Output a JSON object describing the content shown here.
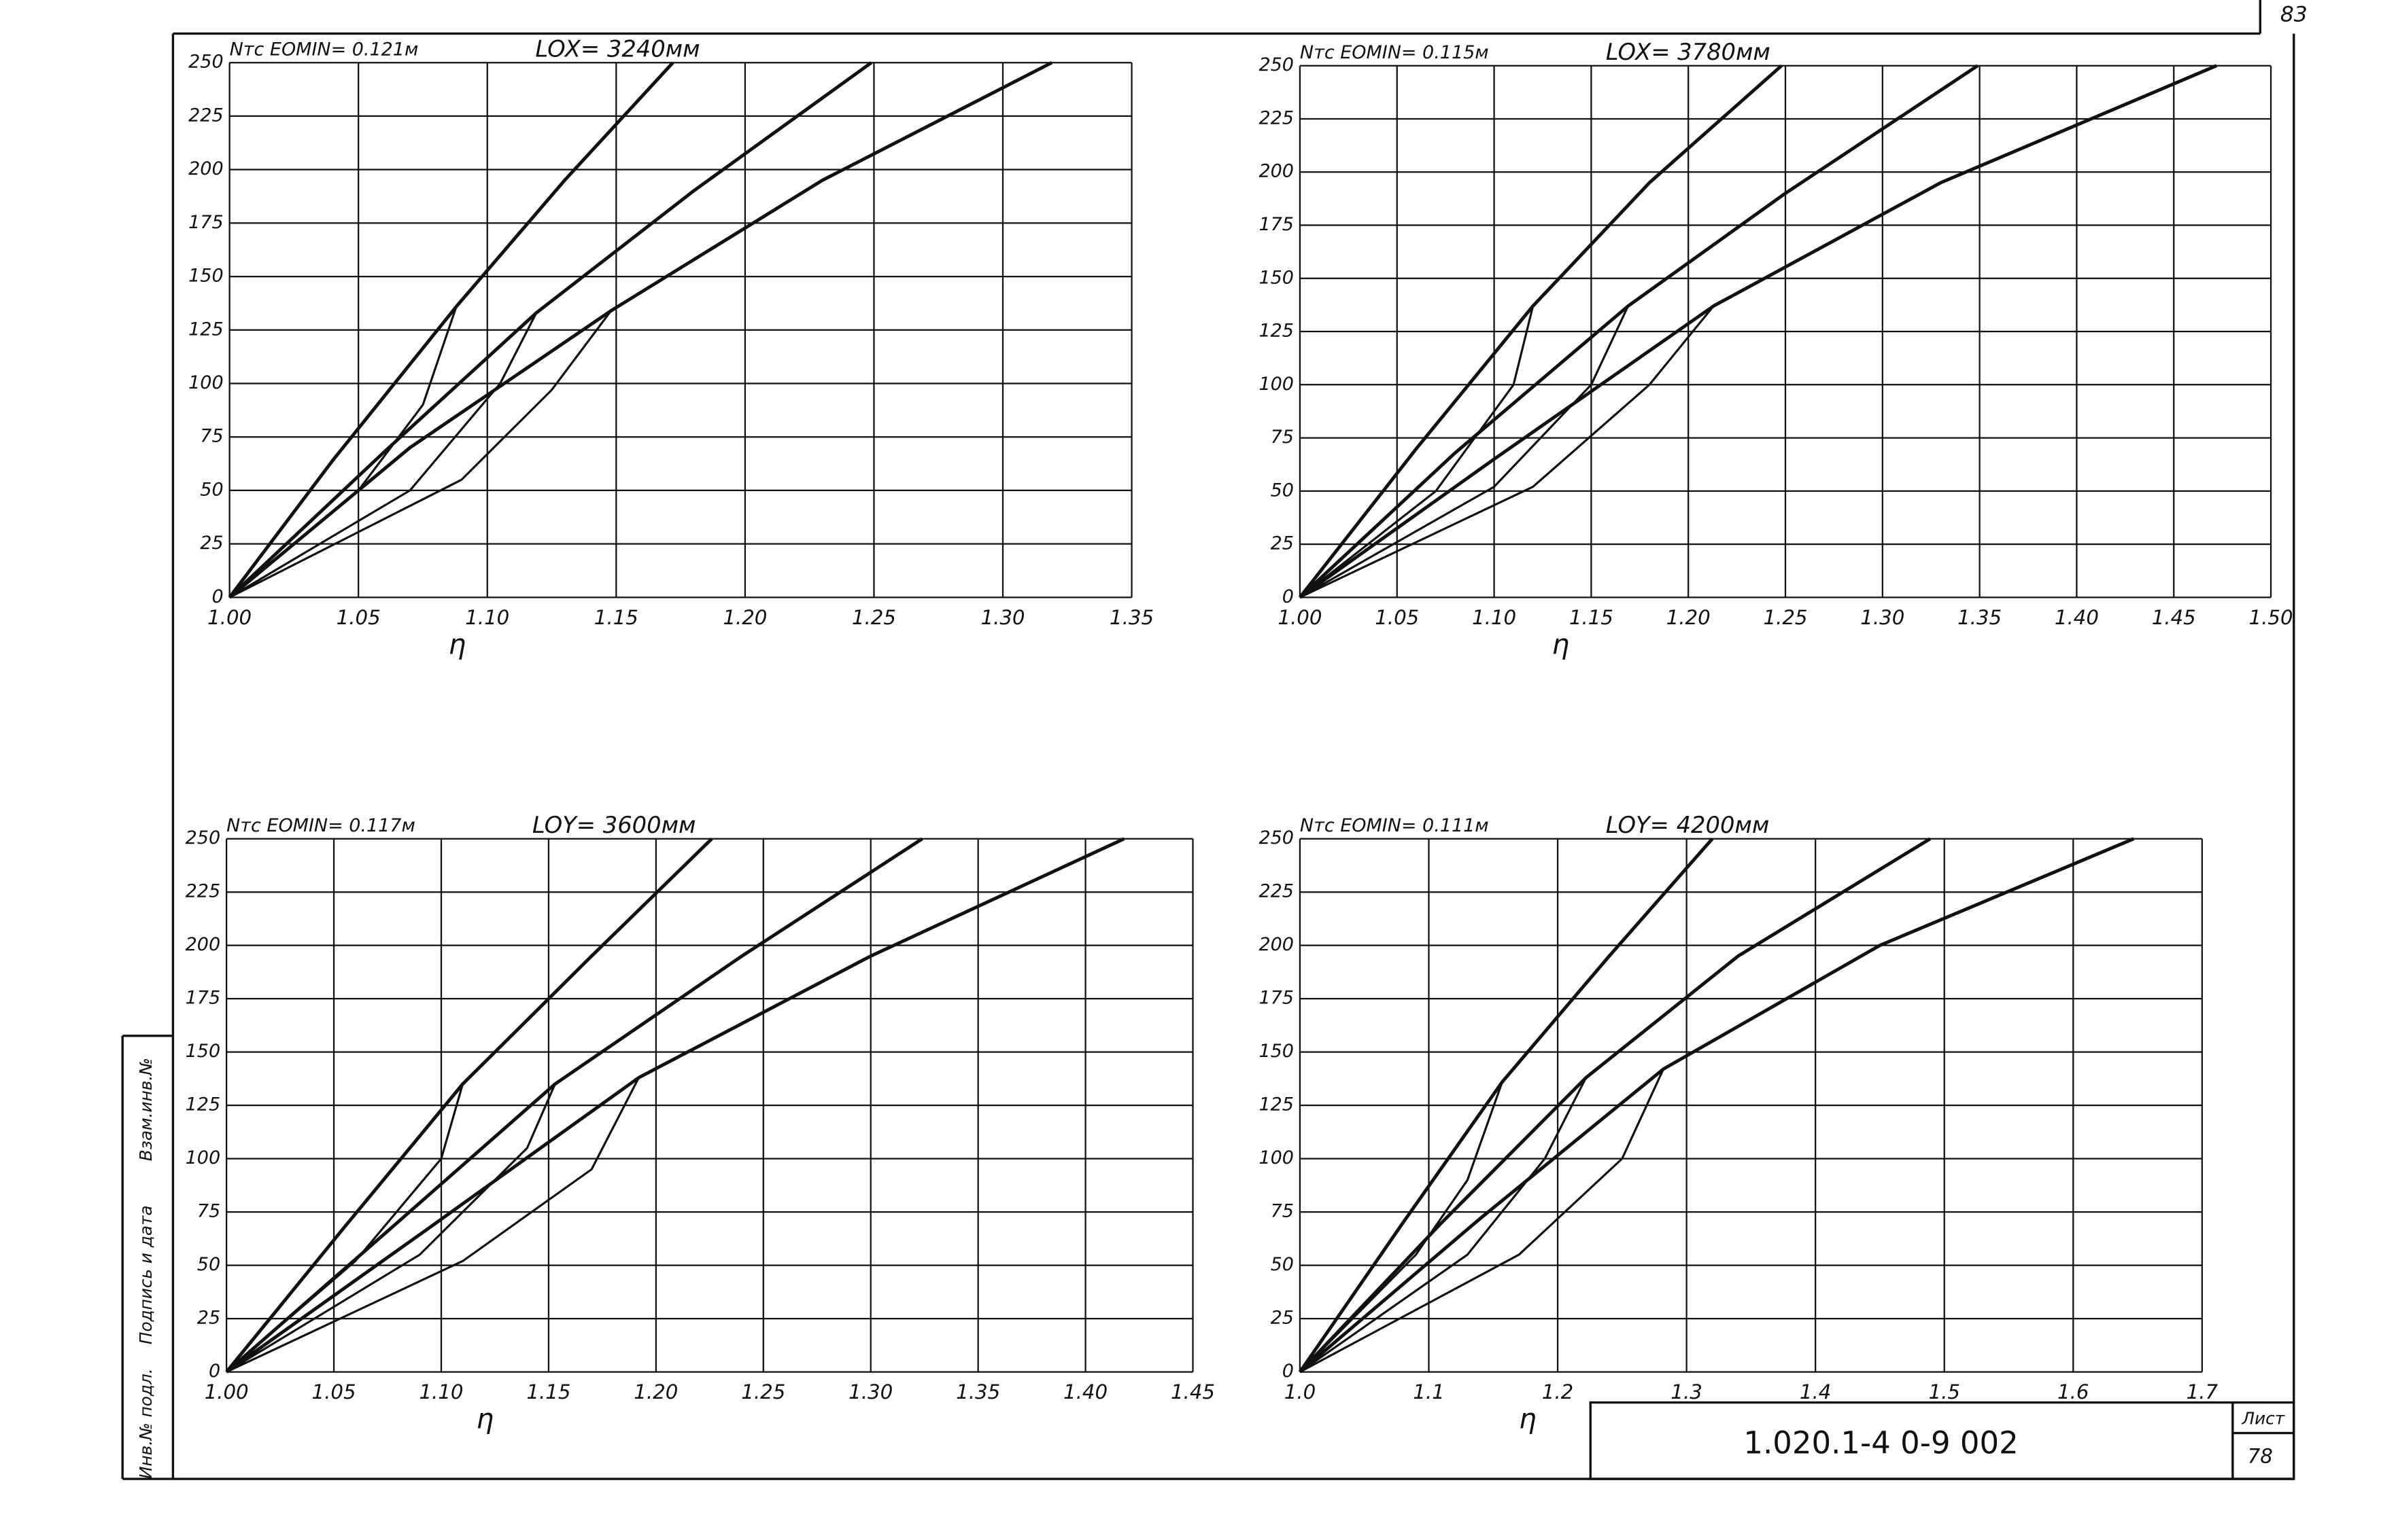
{
  "chart_data": [
    {
      "type": "line",
      "title": "Nтс EOMIN= 0.121м",
      "subtitle": "LOX= 3240мм",
      "x_label": "η",
      "xlim": [
        1.0,
        1.35
      ],
      "ylim": [
        0,
        250
      ],
      "grid": true,
      "xticks": [
        {
          "value": 1.0,
          "label": "1.00"
        },
        1.05,
        {
          "value": 1.1,
          "label": "1.10"
        },
        1.15,
        {
          "value": 1.2,
          "label": "1.20"
        },
        1.25,
        {
          "value": 1.3,
          "label": "1.30"
        },
        1.35
      ],
      "yticks": [
        0,
        25,
        50,
        75,
        100,
        125,
        150,
        175,
        200,
        225,
        250
      ],
      "series": [
        {
          "color": "#111",
          "x": [
            1.0,
            1.04,
            1.088,
            1.13,
            1.172
          ],
          "values": [
            0,
            64,
            136,
            195,
            250
          ]
        },
        {
          "color": "#111",
          "x": [
            1.0,
            1.06,
            1.119,
            1.18,
            1.249
          ],
          "values": [
            0,
            68,
            133,
            190,
            250
          ]
        },
        {
          "color": "#111",
          "x": [
            1.0,
            1.07,
            1.148,
            1.23,
            1.319
          ],
          "values": [
            0,
            70,
            134,
            195,
            250
          ]
        },
        {
          "color": "#111",
          "x": [
            1.0,
            1.05,
            1.075,
            1.088
          ],
          "values": [
            0,
            50,
            90,
            136
          ]
        },
        {
          "color": "#111",
          "x": [
            1.0,
            1.07,
            1.105,
            1.119
          ],
          "values": [
            0,
            50,
            100,
            133
          ]
        },
        {
          "color": "#111",
          "x": [
            1.0,
            1.09,
            1.125,
            1.148
          ],
          "values": [
            0,
            55,
            97,
            134
          ]
        }
      ]
    },
    {
      "type": "line",
      "title": "Nтс EOMIN= 0.115м",
      "subtitle": "LOX= 3780мм",
      "x_label": "η",
      "xlim": [
        1.0,
        1.5
      ],
      "ylim": [
        0,
        250
      ],
      "grid": true,
      "xticks": [
        {
          "value": 1.0,
          "label": "1.00"
        },
        1.05,
        {
          "value": 1.1,
          "label": "1.10"
        },
        1.15,
        {
          "value": 1.2,
          "label": "1.20"
        },
        1.25,
        {
          "value": 1.3,
          "label": "1.30"
        },
        1.35,
        {
          "value": 1.4,
          "label": "1.40"
        },
        1.45,
        {
          "value": 1.5,
          "label": "1.50"
        }
      ],
      "yticks": [
        0,
        25,
        50,
        75,
        100,
        125,
        150,
        175,
        200,
        225,
        250
      ],
      "series": [
        {
          "color": "#111",
          "x": [
            1.0,
            1.06,
            1.12,
            1.18,
            1.248
          ],
          "values": [
            0,
            70,
            137,
            195,
            250
          ]
        },
        {
          "color": "#111",
          "x": [
            1.0,
            1.08,
            1.169,
            1.25,
            1.349
          ],
          "values": [
            0,
            68,
            137,
            190,
            250
          ]
        },
        {
          "color": "#111",
          "x": [
            1.0,
            1.1,
            1.213,
            1.33,
            1.472
          ],
          "values": [
            0,
            65,
            137,
            195,
            250
          ]
        },
        {
          "color": "#111",
          "x": [
            1.0,
            1.07,
            1.11,
            1.12
          ],
          "values": [
            0,
            50,
            100,
            137
          ]
        },
        {
          "color": "#111",
          "x": [
            1.0,
            1.1,
            1.15,
            1.169
          ],
          "values": [
            0,
            52,
            100,
            137
          ]
        },
        {
          "color": "#111",
          "x": [
            1.0,
            1.12,
            1.18,
            1.213
          ],
          "values": [
            0,
            52,
            100,
            137
          ]
        }
      ]
    },
    {
      "type": "line",
      "title": "Nтс EOMIN= 0.117м",
      "subtitle": "LOY= 3600мм",
      "x_label": "η",
      "xlim": [
        1.0,
        1.45
      ],
      "ylim": [
        0,
        250
      ],
      "grid": true,
      "xticks": [
        {
          "value": 1.0,
          "label": "1.00"
        },
        1.05,
        {
          "value": 1.1,
          "label": "1.10"
        },
        1.15,
        {
          "value": 1.2,
          "label": "1.20"
        },
        1.25,
        {
          "value": 1.3,
          "label": "1.30"
        },
        1.35,
        {
          "value": 1.4,
          "label": "1.40"
        },
        1.45
      ],
      "yticks": [
        0,
        25,
        50,
        75,
        100,
        125,
        150,
        175,
        200,
        225,
        250
      ],
      "series": [
        {
          "color": "#111",
          "x": [
            1.0,
            1.055,
            1.11,
            1.17,
            1.226
          ],
          "values": [
            0,
            68,
            135,
            195,
            250
          ]
        },
        {
          "color": "#111",
          "x": [
            1.0,
            1.075,
            1.153,
            1.24,
            1.324
          ],
          "values": [
            0,
            66,
            135,
            195,
            250
          ]
        },
        {
          "color": "#111",
          "x": [
            1.0,
            1.095,
            1.192,
            1.3,
            1.418
          ],
          "values": [
            0,
            68,
            138,
            195,
            250
          ]
        },
        {
          "color": "#111",
          "x": [
            1.0,
            1.06,
            1.1,
            1.11
          ],
          "values": [
            0,
            52,
            100,
            135
          ]
        },
        {
          "color": "#111",
          "x": [
            1.0,
            1.09,
            1.14,
            1.153
          ],
          "values": [
            0,
            55,
            105,
            135
          ]
        },
        {
          "color": "#111",
          "x": [
            1.0,
            1.11,
            1.17,
            1.192
          ],
          "values": [
            0,
            52,
            95,
            138
          ]
        }
      ]
    },
    {
      "type": "line",
      "title": "Nтс EOMIN= 0.111м",
      "subtitle": "LOY= 4200мм",
      "x_label": "η",
      "xlim": [
        1.0,
        1.7
      ],
      "ylim": [
        0,
        250
      ],
      "grid": true,
      "xticks": [
        {
          "value": 1.0,
          "label": "1.0"
        },
        1.1,
        1.2,
        1.3,
        1.4,
        1.5,
        1.6,
        1.7
      ],
      "yticks": [
        0,
        25,
        50,
        75,
        100,
        125,
        150,
        175,
        200,
        225,
        250
      ],
      "series": [
        {
          "color": "#111",
          "x": [
            1.0,
            1.08,
            1.157,
            1.24,
            1.32
          ],
          "values": [
            0,
            70,
            136,
            195,
            250
          ]
        },
        {
          "color": "#111",
          "x": [
            1.0,
            1.11,
            1.222,
            1.34,
            1.489
          ],
          "values": [
            0,
            70,
            138,
            195,
            250
          ]
        },
        {
          "color": "#111",
          "x": [
            1.0,
            1.14,
            1.282,
            1.45,
            1.647
          ],
          "values": [
            0,
            72,
            142,
            200,
            250
          ]
        },
        {
          "color": "#111",
          "x": [
            1.0,
            1.09,
            1.13,
            1.157
          ],
          "values": [
            0,
            55,
            90,
            136
          ]
        },
        {
          "color": "#111",
          "x": [
            1.0,
            1.13,
            1.19,
            1.222
          ],
          "values": [
            0,
            55,
            100,
            138
          ]
        },
        {
          "color": "#111",
          "x": [
            1.0,
            1.17,
            1.25,
            1.282
          ],
          "values": [
            0,
            55,
            100,
            142
          ]
        }
      ]
    }
  ],
  "stamp": {
    "designation": "1.020.1-4    0-9  002",
    "sheet_label": "Лист",
    "sheet": "78",
    "corner": "83",
    "side": [
      "Инв.№ подл.",
      "Подпись и дата",
      "Взам.инв.№"
    ]
  }
}
